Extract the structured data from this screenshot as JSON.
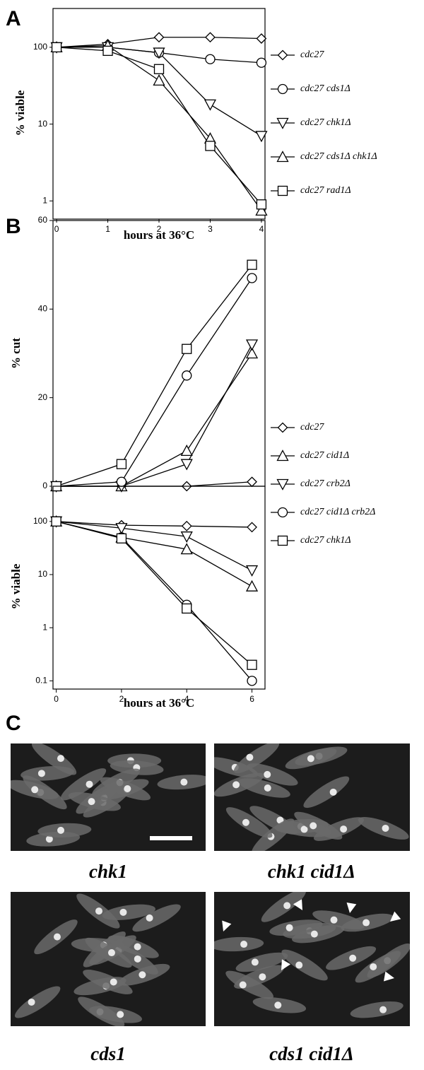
{
  "chart_data": [
    {
      "type": "line",
      "panel": "A",
      "yscale": "log",
      "y_label": "% viable",
      "x_label": "hours at 36°C",
      "x": [
        0,
        1,
        2,
        3,
        4
      ],
      "xlim": [
        -0.07,
        4.07
      ],
      "xticks": [
        0,
        1,
        2,
        3,
        4
      ],
      "ylim": [
        0.58,
        320
      ],
      "yticks": [
        1,
        10,
        100
      ],
      "legend": "right",
      "series": [
        {
          "name": "cdc27",
          "marker": "diamond",
          "color": "#000000",
          "values": [
            100,
            110,
            135,
            135,
            130
          ]
        },
        {
          "name": "cdc27 cds1Δ",
          "marker": "circle",
          "color": "#000000",
          "values": [
            100,
            100,
            85,
            70,
            63
          ]
        },
        {
          "name": "cdc27 chk1Δ",
          "marker": "triangle-down",
          "color": "#000000",
          "values": [
            100,
            100,
            85,
            18,
            7
          ]
        },
        {
          "name": "cdc27 cds1Δ chk1Δ",
          "marker": "triangle-up",
          "color": "#000000",
          "values": [
            100,
            105,
            37,
            6.5,
            0.75
          ]
        },
        {
          "name": "cdc27 rad1Δ",
          "marker": "square",
          "color": "#000000",
          "values": [
            100,
            90,
            52,
            5.2,
            0.9
          ]
        }
      ]
    },
    {
      "type": "line",
      "panel": "B",
      "yscale": "linear",
      "y_label": "% cut",
      "x": [
        0,
        2,
        4,
        6
      ],
      "xlim": [
        -0.1,
        6.4
      ],
      "ylim": [
        0,
        60
      ],
      "yticks": [
        0,
        20,
        40,
        60
      ],
      "legend": "right",
      "series": [
        {
          "name": "cdc27",
          "marker": "diamond",
          "color": "#000000",
          "values": [
            0,
            0,
            0,
            1
          ]
        },
        {
          "name": "cdc27 cid1Δ",
          "marker": "triangle-up",
          "color": "#000000",
          "values": [
            0,
            0,
            8,
            30
          ]
        },
        {
          "name": "cdc27 crb2Δ",
          "marker": "triangle-down",
          "color": "#000000",
          "values": [
            0,
            0,
            5,
            32
          ]
        },
        {
          "name": "cdc27 cid1Δ crb2Δ",
          "marker": "circle",
          "color": "#000000",
          "values": [
            0,
            1,
            25,
            47
          ]
        },
        {
          "name": "cdc27 chk1Δ",
          "marker": "square",
          "color": "#000000",
          "values": [
            0,
            5,
            31,
            50
          ]
        }
      ]
    },
    {
      "type": "line",
      "yscale": "log",
      "y_label": "% viable",
      "x_label": "hours at 36°C",
      "x": [
        0,
        2,
        4,
        6
      ],
      "xlim": [
        -0.1,
        6.4
      ],
      "xticks": [
        0,
        2,
        4,
        6
      ],
      "ylim": [
        0.07,
        460
      ],
      "yticks": [
        0.1,
        1,
        10,
        100
      ],
      "series": [
        {
          "marker": "diamond",
          "color": "#000000",
          "values": [
            100,
            85,
            82,
            78
          ]
        },
        {
          "marker": "triangle-up",
          "color": "#000000",
          "values": [
            100,
            50,
            30,
            6
          ]
        },
        {
          "marker": "triangle-down",
          "color": "#000000",
          "values": [
            100,
            75,
            52,
            12
          ]
        },
        {
          "marker": "circle",
          "color": "#000000",
          "values": [
            100,
            50,
            2.7,
            0.1
          ]
        },
        {
          "marker": "square",
          "color": "#000000",
          "values": [
            100,
            48,
            2.3,
            0.2
          ]
        }
      ]
    }
  ],
  "micrographs": {
    "label": "C",
    "items": [
      {
        "caption": "chk1"
      },
      {
        "caption": "chk1 cid1Δ"
      },
      {
        "caption": "cds1"
      },
      {
        "caption": "cds1 cid1Δ"
      }
    ]
  }
}
